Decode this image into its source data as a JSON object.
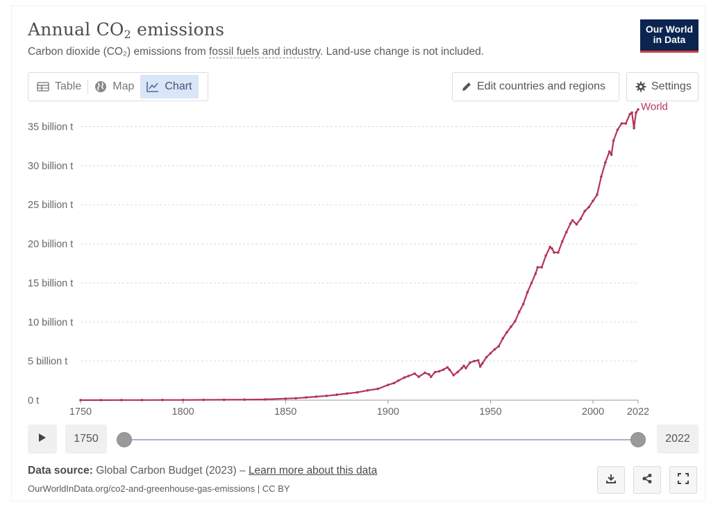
{
  "header": {
    "title_main": "Annual CO",
    "title_sub": "2",
    "title_end": " emissions",
    "subtitle_pre": "Carbon dioxide (CO₂) emissions from ",
    "subtitle_link": "fossil fuels and industry",
    "subtitle_post": ". Land-use change is not included."
  },
  "logo": {
    "line1": "Our World",
    "line2": "in Data"
  },
  "tabs": [
    {
      "label": "Table",
      "icon": "table-icon"
    },
    {
      "label": "Map",
      "icon": "globe-icon"
    },
    {
      "label": "Chart",
      "icon": "line-chart-icon",
      "active": true
    }
  ],
  "toolbar": {
    "edit_label": "Edit countries and regions",
    "settings_label": "Settings"
  },
  "timeline": {
    "start": "1750",
    "end": "2022"
  },
  "footer": {
    "source_label": "Data source:",
    "source_text": " Global Carbon Budget (2023) – ",
    "learn_more": "Learn more about this data",
    "url": "OurWorldInData.org/co2-and-greenhouse-gas-emissions | CC BY"
  },
  "colors": {
    "series": "#b13557",
    "accent_bg": "#dbe5f8",
    "logo_bg": "#0c2450",
    "logo_red": "#d73b3e"
  },
  "chart_data": {
    "type": "line",
    "title": "Annual CO₂ emissions",
    "xlabel": "",
    "ylabel": "",
    "xlim": [
      1750,
      2022
    ],
    "ylim": [
      0,
      37
    ],
    "x_ticks": [
      {
        "value": 1750,
        "label": "1750"
      },
      {
        "value": 1800,
        "label": "1800"
      },
      {
        "value": 1850,
        "label": "1850"
      },
      {
        "value": 1900,
        "label": "1900"
      },
      {
        "value": 1950,
        "label": "1950"
      },
      {
        "value": 2000,
        "label": "2000"
      },
      {
        "value": 2022,
        "label": "2022"
      }
    ],
    "y_ticks": [
      {
        "value": 0,
        "label": "0 t"
      },
      {
        "value": 5,
        "label": "5 billion t"
      },
      {
        "value": 10,
        "label": "10 billion t"
      },
      {
        "value": 15,
        "label": "15 billion t"
      },
      {
        "value": 20,
        "label": "20 billion t"
      },
      {
        "value": 25,
        "label": "25 billion t"
      },
      {
        "value": 30,
        "label": "30 billion t"
      },
      {
        "value": 35,
        "label": "35 billion t"
      }
    ],
    "series": [
      {
        "name": "World",
        "unit": "billion t",
        "points": [
          [
            1750,
            0.01
          ],
          [
            1760,
            0.01
          ],
          [
            1770,
            0.02
          ],
          [
            1780,
            0.02
          ],
          [
            1790,
            0.03
          ],
          [
            1800,
            0.03
          ],
          [
            1810,
            0.04
          ],
          [
            1820,
            0.05
          ],
          [
            1830,
            0.07
          ],
          [
            1840,
            0.1
          ],
          [
            1850,
            0.2
          ],
          [
            1855,
            0.25
          ],
          [
            1860,
            0.35
          ],
          [
            1865,
            0.45
          ],
          [
            1870,
            0.55
          ],
          [
            1875,
            0.7
          ],
          [
            1880,
            0.85
          ],
          [
            1885,
            1.0
          ],
          [
            1890,
            1.25
          ],
          [
            1895,
            1.45
          ],
          [
            1900,
            1.95
          ],
          [
            1903,
            2.2
          ],
          [
            1905,
            2.5
          ],
          [
            1908,
            2.9
          ],
          [
            1910,
            3.1
          ],
          [
            1913,
            3.4
          ],
          [
            1915,
            3.0
          ],
          [
            1918,
            3.5
          ],
          [
            1920,
            3.3
          ],
          [
            1921,
            3.0
          ],
          [
            1923,
            3.6
          ],
          [
            1925,
            3.7
          ],
          [
            1927,
            3.9
          ],
          [
            1929,
            4.2
          ],
          [
            1930,
            3.9
          ],
          [
            1932,
            3.2
          ],
          [
            1934,
            3.6
          ],
          [
            1936,
            4.1
          ],
          [
            1937,
            4.4
          ],
          [
            1938,
            4.1
          ],
          [
            1940,
            4.8
          ],
          [
            1942,
            5.0
          ],
          [
            1944,
            5.1
          ],
          [
            1945,
            4.3
          ],
          [
            1946,
            4.7
          ],
          [
            1948,
            5.5
          ],
          [
            1950,
            6.0
          ],
          [
            1952,
            6.5
          ],
          [
            1954,
            6.9
          ],
          [
            1956,
            7.9
          ],
          [
            1958,
            8.7
          ],
          [
            1960,
            9.4
          ],
          [
            1962,
            10.1
          ],
          [
            1964,
            11.3
          ],
          [
            1966,
            12.3
          ],
          [
            1968,
            13.8
          ],
          [
            1970,
            15.0
          ],
          [
            1972,
            16.2
          ],
          [
            1973,
            17.0
          ],
          [
            1975,
            17.0
          ],
          [
            1977,
            18.5
          ],
          [
            1979,
            19.6
          ],
          [
            1980,
            19.4
          ],
          [
            1981,
            18.9
          ],
          [
            1983,
            18.9
          ],
          [
            1985,
            20.3
          ],
          [
            1987,
            21.5
          ],
          [
            1989,
            22.6
          ],
          [
            1990,
            23.0
          ],
          [
            1992,
            22.5
          ],
          [
            1994,
            23.2
          ],
          [
            1996,
            24.2
          ],
          [
            1998,
            24.7
          ],
          [
            2000,
            25.5
          ],
          [
            2002,
            26.3
          ],
          [
            2004,
            28.6
          ],
          [
            2006,
            30.4
          ],
          [
            2008,
            31.8
          ],
          [
            2009,
            31.4
          ],
          [
            2010,
            33.2
          ],
          [
            2012,
            34.6
          ],
          [
            2014,
            35.4
          ],
          [
            2016,
            35.4
          ],
          [
            2018,
            36.6
          ],
          [
            2019,
            36.8
          ],
          [
            2020,
            34.8
          ],
          [
            2021,
            36.8
          ],
          [
            2022,
            37.2
          ]
        ]
      }
    ]
  }
}
